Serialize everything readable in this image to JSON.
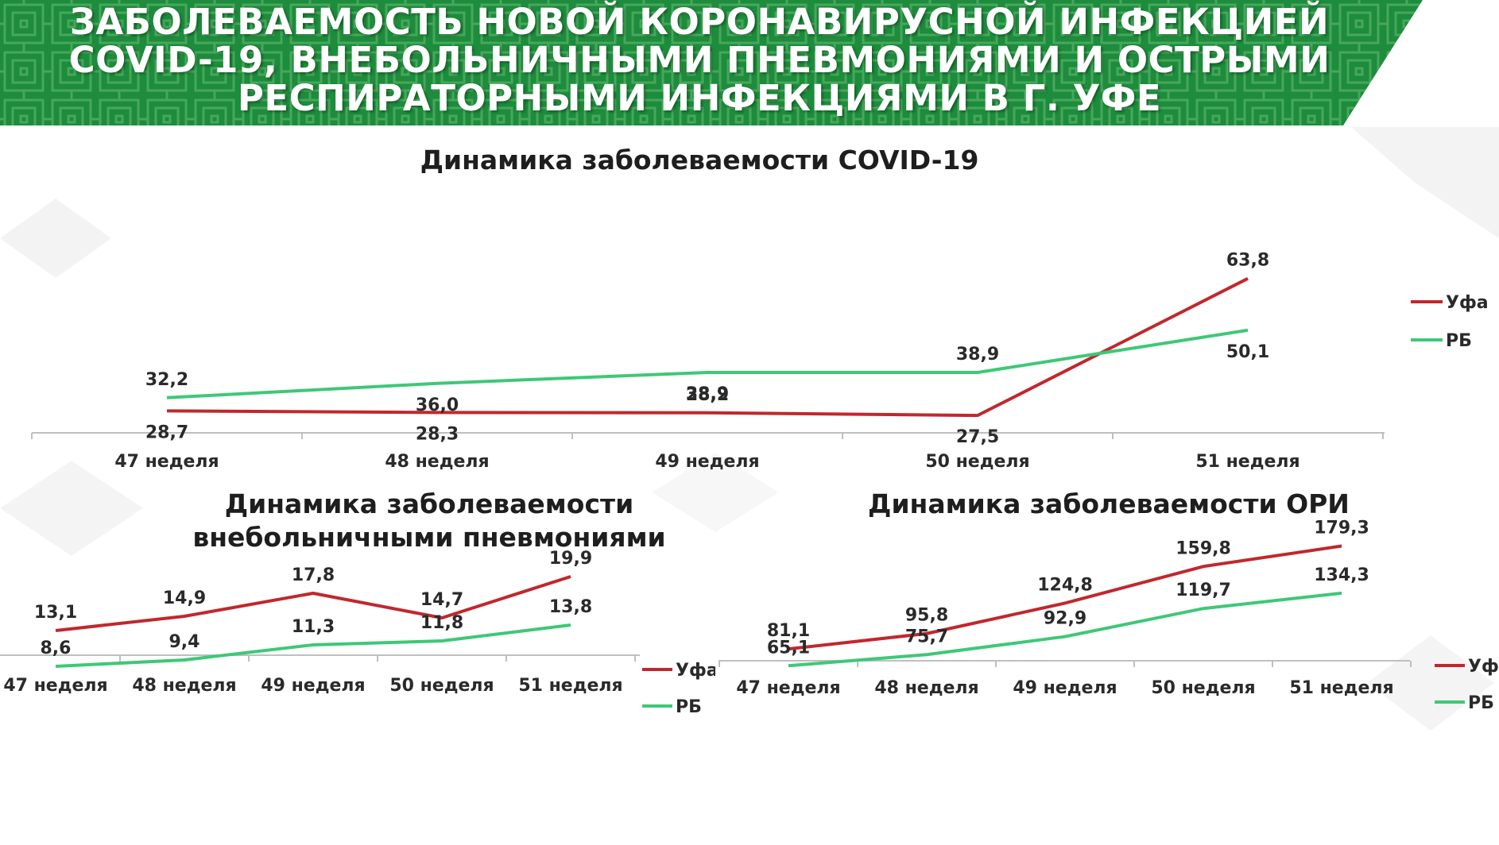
{
  "banner": {
    "title": "ЗАБОЛЕВАЕМОСТЬ НОВОЙ КОРОНАВИРУСНОЙ ИНФЕКЦИЕЙ\nCOVID-19, ВНЕБОЛЬНИЧНЫМИ ПНЕВМОНИЯМИ И ОСТРЫМИ\nРЕСПИРАТОРНЫМИ ИНФЕКЦИЯМИ В Г. УФЕ",
    "color": "#1e8c3c"
  },
  "chart_data": [
    {
      "type": "line",
      "title": "Динамика заболеваемости COVID-19",
      "categories": [
        "47 неделя",
        "48 неделя",
        "49 неделя",
        "50 неделя",
        "51 неделя"
      ],
      "series": [
        {
          "name": "Уфа",
          "values": [
            28.7,
            28.3,
            28.2,
            27.5,
            63.8
          ],
          "labels": [
            "28,7",
            "28,3",
            "28,2",
            "27,5",
            "63,8"
          ],
          "color": "#c0282d"
        },
        {
          "name": "РБ",
          "values": [
            32.2,
            36.0,
            38.9,
            38.9,
            50.1
          ],
          "labels": [
            "32,2",
            "36,0",
            "38,9",
            "38,9",
            "50,1"
          ],
          "color": "#3ec878"
        }
      ],
      "grid": false,
      "legend": "right"
    },
    {
      "type": "line",
      "title": "Динамика заболеваемости\nвнебольничными пневмониями",
      "categories": [
        "47 неделя",
        "48 неделя",
        "49 неделя",
        "50 неделя",
        "51 неделя"
      ],
      "series": [
        {
          "name": "Уфа",
          "values": [
            13.1,
            14.9,
            17.8,
            14.7,
            19.9
          ],
          "labels": [
            "13,1",
            "14,9",
            "17,8",
            "14,7",
            "19,9"
          ],
          "color": "#c0282d"
        },
        {
          "name": "РБ",
          "values": [
            8.6,
            9.4,
            11.3,
            11.8,
            13.8
          ],
          "labels": [
            "8,6",
            "9,4",
            "11,3",
            "11,8",
            "13,8"
          ],
          "color": "#3ec878"
        }
      ],
      "grid": false,
      "legend": "right"
    },
    {
      "type": "line",
      "title": "Динамика заболеваемости ОРИ",
      "categories": [
        "47 неделя",
        "48 неделя",
        "49 неделя",
        "50 неделя",
        "51 неделя"
      ],
      "series": [
        {
          "name": "Уфа",
          "values": [
            81.1,
            95.8,
            124.8,
            159.8,
            179.3
          ],
          "labels": [
            "81,1",
            "95,8",
            "124,8",
            "159,8",
            "179,3"
          ],
          "color": "#c0282d"
        },
        {
          "name": "РБ",
          "values": [
            65.1,
            75.7,
            92.9,
            119.7,
            134.3
          ],
          "labels": [
            "65,1",
            "75,7",
            "92,9",
            "119,7",
            "134,3"
          ],
          "color": "#3ec878"
        }
      ],
      "grid": false,
      "legend": "right"
    }
  ]
}
